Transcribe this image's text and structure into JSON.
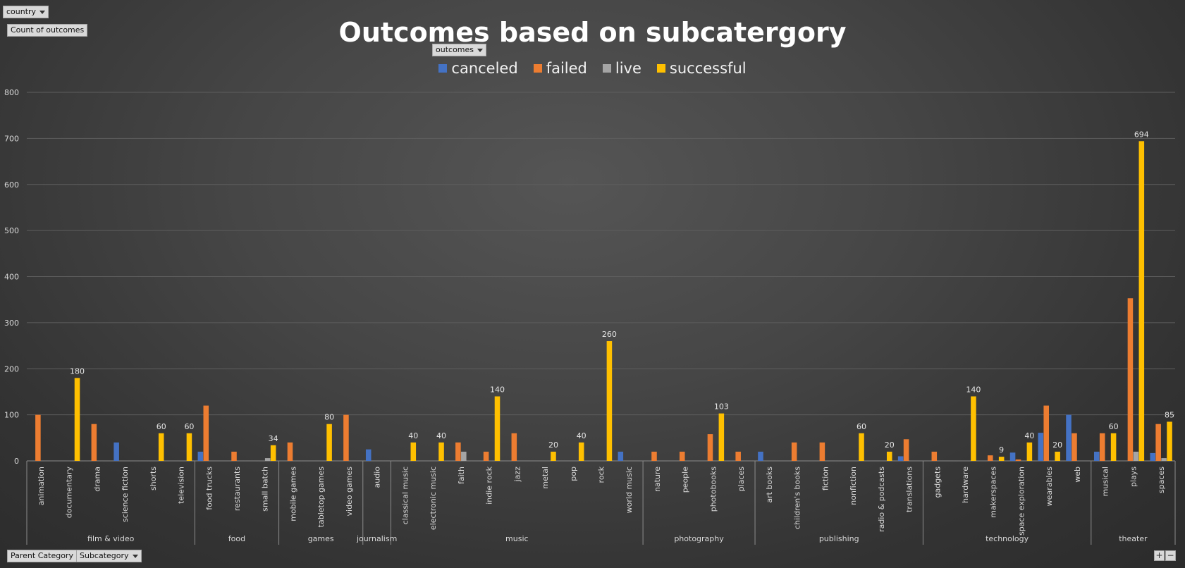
{
  "filters": {
    "country": "country",
    "values_field": "Count of outcomes",
    "legend_field": "outcomes",
    "axis_field_1": "Parent Category",
    "axis_field_2": "Subcategory"
  },
  "zoom": {
    "plus": "+",
    "minus": "−"
  },
  "colors": {
    "canceled": "#4472c4",
    "failed": "#ed7d31",
    "live": "#a5a5a5",
    "successful": "#ffc000"
  },
  "chart_data": {
    "type": "bar",
    "title": "Outcomes based on subcatergory",
    "ylim": [
      0,
      800
    ],
    "yticks": [
      0,
      100,
      200,
      300,
      400,
      500,
      600,
      700,
      800
    ],
    "grid": true,
    "legend_position": "top",
    "series_names": [
      "canceled",
      "failed",
      "live",
      "successful"
    ],
    "groups": [
      {
        "name": "film & video",
        "subs": [
          {
            "label": "animation",
            "values": [
              0,
              100,
              0,
              0
            ]
          },
          {
            "label": "documentary",
            "values": [
              0,
              0,
              0,
              180
            ]
          },
          {
            "label": "drama",
            "values": [
              0,
              80,
              0,
              0
            ]
          },
          {
            "label": "science fiction",
            "values": [
              40,
              0,
              0,
              0
            ]
          },
          {
            "label": "shorts",
            "values": [
              0,
              0,
              0,
              60
            ]
          },
          {
            "label": "television",
            "values": [
              0,
              0,
              0,
              60
            ]
          }
        ]
      },
      {
        "name": "food",
        "subs": [
          {
            "label": "food trucks",
            "values": [
              20,
              120,
              0,
              0
            ]
          },
          {
            "label": "restaurants",
            "values": [
              0,
              20,
              0,
              0
            ]
          },
          {
            "label": "small batch",
            "values": [
              0,
              0,
              6,
              34
            ]
          }
        ]
      },
      {
        "name": "games",
        "subs": [
          {
            "label": "mobile games",
            "values": [
              0,
              40,
              0,
              0
            ]
          },
          {
            "label": "tabletop games",
            "values": [
              0,
              0,
              0,
              80
            ]
          },
          {
            "label": "video games",
            "values": [
              0,
              100,
              0,
              0
            ]
          }
        ]
      },
      {
        "name": "journalism",
        "subs": [
          {
            "label": "audio",
            "values": [
              25,
              0,
              0,
              0
            ]
          }
        ]
      },
      {
        "name": "music",
        "subs": [
          {
            "label": "classical music",
            "values": [
              0,
              0,
              0,
              40
            ]
          },
          {
            "label": "electronic music",
            "values": [
              0,
              0,
              0,
              40
            ]
          },
          {
            "label": "faith",
            "values": [
              0,
              40,
              20,
              0
            ]
          },
          {
            "label": "indie rock",
            "values": [
              0,
              20,
              0,
              140
            ]
          },
          {
            "label": "jazz",
            "values": [
              0,
              60,
              0,
              0
            ]
          },
          {
            "label": "metal",
            "values": [
              0,
              0,
              0,
              20
            ]
          },
          {
            "label": "pop",
            "values": [
              0,
              0,
              0,
              40
            ]
          },
          {
            "label": "rock",
            "values": [
              0,
              0,
              0,
              260
            ]
          },
          {
            "label": "world music",
            "values": [
              20,
              0,
              0,
              0
            ]
          }
        ]
      },
      {
        "name": "photography",
        "subs": [
          {
            "label": "nature",
            "values": [
              0,
              20,
              0,
              0
            ]
          },
          {
            "label": "people",
            "values": [
              0,
              20,
              0,
              0
            ]
          },
          {
            "label": "photobooks",
            "values": [
              0,
              58,
              0,
              103
            ]
          },
          {
            "label": "places",
            "values": [
              0,
              20,
              0,
              0
            ]
          }
        ]
      },
      {
        "name": "publishing",
        "subs": [
          {
            "label": "art books",
            "values": [
              20,
              0,
              0,
              0
            ]
          },
          {
            "label": "children's books",
            "values": [
              0,
              40,
              0,
              0
            ]
          },
          {
            "label": "fiction",
            "values": [
              0,
              40,
              0,
              0
            ]
          },
          {
            "label": "nonfiction",
            "values": [
              0,
              0,
              0,
              60
            ]
          },
          {
            "label": "radio & podcasts",
            "values": [
              0,
              0,
              0,
              20
            ]
          },
          {
            "label": "translations",
            "values": [
              10,
              47,
              0,
              0
            ]
          }
        ]
      },
      {
        "name": "technology",
        "subs": [
          {
            "label": "gadgets",
            "values": [
              0,
              20,
              0,
              0
            ]
          },
          {
            "label": "hardware",
            "values": [
              0,
              0,
              0,
              140
            ]
          },
          {
            "label": "makerspaces",
            "values": [
              0,
              12,
              0,
              9
            ]
          },
          {
            "label": "space exploration",
            "values": [
              18,
              3,
              0,
              40
            ]
          },
          {
            "label": "wearables",
            "values": [
              61,
              120,
              0,
              20
            ]
          },
          {
            "label": "web",
            "values": [
              100,
              60,
              0,
              0
            ]
          }
        ]
      },
      {
        "name": "theater",
        "subs": [
          {
            "label": "musical",
            "values": [
              20,
              60,
              0,
              60
            ]
          },
          {
            "label": "plays",
            "values": [
              0,
              353,
              20,
              694
            ]
          },
          {
            "label": "spaces",
            "values": [
              17,
              80,
              6,
              85
            ]
          }
        ]
      }
    ],
    "data_labels": [
      {
        "sub": "documentary",
        "series": "successful",
        "text": "180"
      },
      {
        "sub": "shorts",
        "series": "successful",
        "text": "60"
      },
      {
        "sub": "television",
        "series": "successful",
        "text": "60"
      },
      {
        "sub": "small batch",
        "series": "successful",
        "text": "34"
      },
      {
        "sub": "tabletop games",
        "series": "successful",
        "text": "80"
      },
      {
        "sub": "classical music",
        "series": "successful",
        "text": "40"
      },
      {
        "sub": "electronic music",
        "series": "successful",
        "text": "40"
      },
      {
        "sub": "indie rock",
        "series": "successful",
        "text": "140"
      },
      {
        "sub": "metal",
        "series": "successful",
        "text": "20"
      },
      {
        "sub": "pop",
        "series": "successful",
        "text": "40"
      },
      {
        "sub": "rock",
        "series": "successful",
        "text": "260"
      },
      {
        "sub": "photobooks",
        "series": "successful",
        "text": "103"
      },
      {
        "sub": "nonfiction",
        "series": "successful",
        "text": "60"
      },
      {
        "sub": "radio & podcasts",
        "series": "successful",
        "text": "20"
      },
      {
        "sub": "hardware",
        "series": "successful",
        "text": "140"
      },
      {
        "sub": "makerspaces",
        "series": "successful",
        "text": "9"
      },
      {
        "sub": "space exploration",
        "series": "successful",
        "text": "40"
      },
      {
        "sub": "wearables",
        "series": "successful",
        "text": "20"
      },
      {
        "sub": "musical",
        "series": "successful",
        "text": "60"
      },
      {
        "sub": "plays",
        "series": "successful",
        "text": "694"
      },
      {
        "sub": "spaces",
        "series": "successful",
        "text": "85"
      }
    ]
  }
}
